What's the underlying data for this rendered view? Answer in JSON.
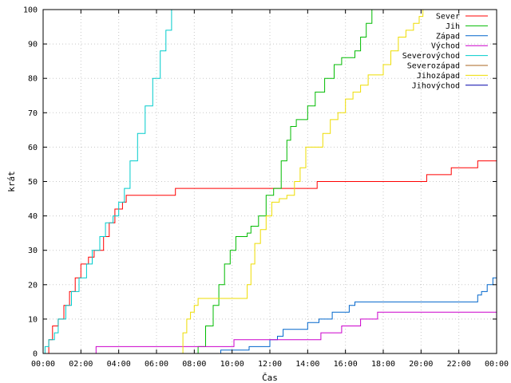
{
  "chart_data": {
    "type": "line",
    "xlabel": "Čas",
    "ylabel": "krát",
    "xlim": [
      0,
      24
    ],
    "ylim": [
      0,
      100
    ],
    "x_ticks": [
      "00:00",
      "02:00",
      "04:00",
      "06:00",
      "08:00",
      "10:00",
      "12:00",
      "14:00",
      "16:00",
      "18:00",
      "20:00",
      "22:00",
      "00:00"
    ],
    "y_ticks": [
      0,
      10,
      20,
      30,
      40,
      50,
      60,
      70,
      80,
      90,
      100
    ],
    "grid": true,
    "legend_position": "top-right",
    "series": [
      {
        "name": "Sever",
        "color": "#ff0000",
        "points": [
          [
            0.1,
            0
          ],
          [
            0.3,
            4
          ],
          [
            0.5,
            8
          ],
          [
            0.8,
            10
          ],
          [
            1.1,
            14
          ],
          [
            1.4,
            18
          ],
          [
            1.7,
            22
          ],
          [
            2.0,
            26
          ],
          [
            2.4,
            28
          ],
          [
            2.7,
            30
          ],
          [
            3.2,
            34
          ],
          [
            3.5,
            38
          ],
          [
            3.8,
            42
          ],
          [
            4.2,
            44
          ],
          [
            4.4,
            46
          ],
          [
            6.9,
            46
          ],
          [
            7.0,
            48
          ],
          [
            14.4,
            48
          ],
          [
            14.5,
            50
          ],
          [
            20.2,
            50
          ],
          [
            20.3,
            52
          ],
          [
            21.5,
            52
          ],
          [
            21.6,
            54
          ],
          [
            22.8,
            54
          ],
          [
            23.0,
            56
          ],
          [
            24,
            56
          ]
        ]
      },
      {
        "name": "Jih",
        "color": "#00bb00",
        "points": [
          [
            0,
            0
          ],
          [
            8.1,
            0
          ],
          [
            8.2,
            2
          ],
          [
            8.6,
            8
          ],
          [
            9.0,
            14
          ],
          [
            9.3,
            20
          ],
          [
            9.6,
            26
          ],
          [
            9.9,
            30
          ],
          [
            10.2,
            34
          ],
          [
            10.8,
            35
          ],
          [
            11.0,
            37
          ],
          [
            11.4,
            40
          ],
          [
            11.8,
            46
          ],
          [
            12.2,
            48
          ],
          [
            12.6,
            56
          ],
          [
            12.9,
            62
          ],
          [
            13.1,
            66
          ],
          [
            13.4,
            68
          ],
          [
            14.0,
            72
          ],
          [
            14.4,
            76
          ],
          [
            14.9,
            80
          ],
          [
            15.4,
            84
          ],
          [
            15.8,
            86
          ],
          [
            16.5,
            88
          ],
          [
            16.8,
            92
          ],
          [
            17.1,
            96
          ],
          [
            17.4,
            100
          ]
        ]
      },
      {
        "name": "Západ",
        "color": "#0066cc",
        "points": [
          [
            0,
            0
          ],
          [
            9.3,
            0
          ],
          [
            9.4,
            1
          ],
          [
            10.8,
            1
          ],
          [
            10.9,
            2
          ],
          [
            11.8,
            2
          ],
          [
            12.0,
            4
          ],
          [
            12.4,
            5
          ],
          [
            12.7,
            7
          ],
          [
            13.8,
            7
          ],
          [
            14.0,
            9
          ],
          [
            14.6,
            10
          ],
          [
            15.3,
            12
          ],
          [
            15.7,
            12
          ],
          [
            16.2,
            14
          ],
          [
            16.5,
            15
          ],
          [
            22.8,
            15
          ],
          [
            23.0,
            17
          ],
          [
            23.2,
            18
          ],
          [
            23.5,
            20
          ],
          [
            23.8,
            22
          ],
          [
            24,
            24
          ]
        ]
      },
      {
        "name": "Východ",
        "color": "#cc00cc",
        "points": [
          [
            0,
            0
          ],
          [
            2.7,
            0
          ],
          [
            2.8,
            2
          ],
          [
            10.0,
            2
          ],
          [
            10.1,
            4
          ],
          [
            14.6,
            4
          ],
          [
            14.7,
            6
          ],
          [
            15.7,
            6
          ],
          [
            15.8,
            8
          ],
          [
            16.7,
            8
          ],
          [
            16.8,
            10
          ],
          [
            17.6,
            10
          ],
          [
            17.7,
            12
          ],
          [
            24,
            12
          ]
        ]
      },
      {
        "name": "Severovýchod",
        "color": "#00cccc",
        "points": [
          [
            0,
            0
          ],
          [
            0.1,
            2
          ],
          [
            0.3,
            4
          ],
          [
            0.6,
            6
          ],
          [
            0.8,
            10
          ],
          [
            1.2,
            14
          ],
          [
            1.5,
            18
          ],
          [
            1.9,
            22
          ],
          [
            2.3,
            26
          ],
          [
            2.6,
            30
          ],
          [
            3.0,
            34
          ],
          [
            3.3,
            38
          ],
          [
            3.7,
            40
          ],
          [
            4.0,
            44
          ],
          [
            4.3,
            48
          ],
          [
            4.6,
            56
          ],
          [
            5.0,
            64
          ],
          [
            5.4,
            72
          ],
          [
            5.8,
            80
          ],
          [
            6.2,
            88
          ],
          [
            6.5,
            94
          ],
          [
            6.8,
            100
          ]
        ]
      },
      {
        "name": "Severozápad",
        "color": "#aa6622",
        "points": []
      },
      {
        "name": "Jihozápad",
        "color": "#eedd00",
        "points": [
          [
            0,
            0
          ],
          [
            7.3,
            0
          ],
          [
            7.4,
            6
          ],
          [
            7.6,
            10
          ],
          [
            7.8,
            12
          ],
          [
            8.0,
            14
          ],
          [
            8.2,
            16
          ],
          [
            10.6,
            16
          ],
          [
            10.8,
            20
          ],
          [
            11.0,
            26
          ],
          [
            11.2,
            32
          ],
          [
            11.5,
            36
          ],
          [
            11.8,
            40
          ],
          [
            12.1,
            44
          ],
          [
            12.5,
            45
          ],
          [
            12.9,
            46
          ],
          [
            13.3,
            50
          ],
          [
            13.6,
            54
          ],
          [
            13.9,
            60
          ],
          [
            14.5,
            60
          ],
          [
            14.8,
            64
          ],
          [
            15.2,
            68
          ],
          [
            15.6,
            70
          ],
          [
            16.0,
            74
          ],
          [
            16.4,
            76
          ],
          [
            16.8,
            78
          ],
          [
            17.2,
            81
          ],
          [
            17.8,
            81
          ],
          [
            18.0,
            84
          ],
          [
            18.4,
            88
          ],
          [
            18.8,
            92
          ],
          [
            19.2,
            94
          ],
          [
            19.6,
            96
          ],
          [
            19.9,
            98
          ],
          [
            20.1,
            100
          ]
        ]
      },
      {
        "name": "Jihovýchod",
        "color": "#0000aa",
        "points": []
      }
    ]
  }
}
